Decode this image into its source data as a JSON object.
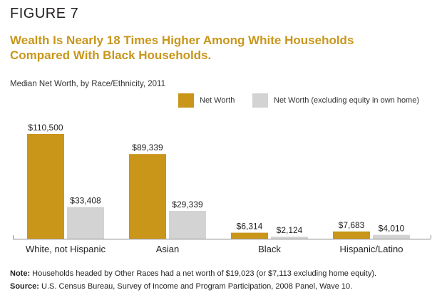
{
  "figure_label": "FIGURE 7",
  "title_line1": "Wealth Is Nearly 18 Times Higher Among White Households",
  "title_line2": "Compared With Black Households.",
  "subtitle": "Median Net Worth, by Race/Ethnicity, 2011",
  "notes": {
    "note_label": "Note:",
    "note_text": "Households headed by Other Races had a net worth of $19,023 (or $7,113 excluding home equity).",
    "source_label": "Source:",
    "source_text": "U.S. Census Bureau, Survey of Income and Program Participation, 2008 Panel, Wave 10."
  },
  "colors": {
    "title": "#c9961a",
    "net_worth": "#c9961a",
    "excl_home": "#d3d3d3",
    "axis": "#888888"
  },
  "chart_data": {
    "type": "bar",
    "categories": [
      "White, not Hispanic",
      "Asian",
      "Black",
      "Hispanic/Latino"
    ],
    "series": [
      {
        "name": "Net Worth",
        "values": [
          110500,
          89339,
          6314,
          7683
        ],
        "labels": [
          "$110,500",
          "$89,339",
          "$6,314",
          "$7,683"
        ]
      },
      {
        "name": "Net Worth (excluding equity in own home)",
        "values": [
          33408,
          29339,
          2124,
          4010
        ],
        "labels": [
          "$33,408",
          "$29,339",
          "$2,124",
          "$4,010"
        ]
      }
    ],
    "ylim": [
      0,
      110500
    ],
    "legend_position": "top-right",
    "grid": false
  }
}
